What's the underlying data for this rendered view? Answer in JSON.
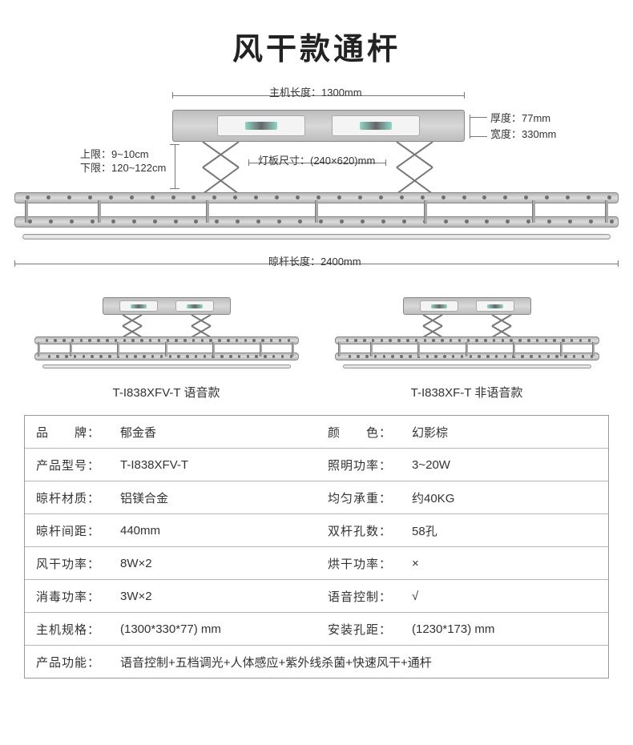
{
  "title": "风干款通杆",
  "diagram": {
    "main_length_label": "主机长度：1300mm",
    "thickness_label": "厚度：77mm",
    "width_label": "宽度：330mm",
    "upper_limit_label": "上限：9~10cm",
    "lower_limit_label": "下限：120~122cm",
    "panel_size_label": "灯板尺寸：(240×620)mm",
    "rack_length_label": "晾杆长度：2400mm",
    "hole_count": 29,
    "cross_positions_pct": [
      2,
      14,
      32,
      50,
      68,
      86,
      98
    ]
  },
  "variants": [
    {
      "label": "T-I838XFV-T 语音款"
    },
    {
      "label": "T-I838XF-T 非语音款"
    }
  ],
  "specs": {
    "rows": [
      {
        "k1": "品　　牌",
        "v1": "郁金香",
        "k2": "颜　　色",
        "v2": "幻影棕"
      },
      {
        "k1": "产品型号",
        "v1": "T-I838XFV-T",
        "k2": "照明功率",
        "v2": "3~20W"
      },
      {
        "k1": "晾杆材质",
        "v1": "铝镁合金",
        "k2": "均匀承重",
        "v2": "约40KG"
      },
      {
        "k1": "晾杆间距",
        "v1": "440mm",
        "k2": "双杆孔数",
        "v2": "58孔"
      },
      {
        "k1": "风干功率",
        "v1": "8W×2",
        "k2": "烘干功率",
        "v2": "×"
      },
      {
        "k1": "消毒功率",
        "v1": "3W×2",
        "k2": "语音控制",
        "v2": "√"
      },
      {
        "k1": "主机规格",
        "v1": "(1300*330*77) mm",
        "k2": "安装孔距",
        "v2": "(1230*173) mm"
      }
    ],
    "last": {
      "k": "产品功能",
      "v": "语音控制+五档调光+人体感应+紫外线杀菌+快速风干+通杆"
    }
  },
  "colors": {
    "text": "#333333",
    "border": "#999999",
    "metal_light": "#dcdcdc",
    "metal_dark": "#b5b5b5"
  }
}
